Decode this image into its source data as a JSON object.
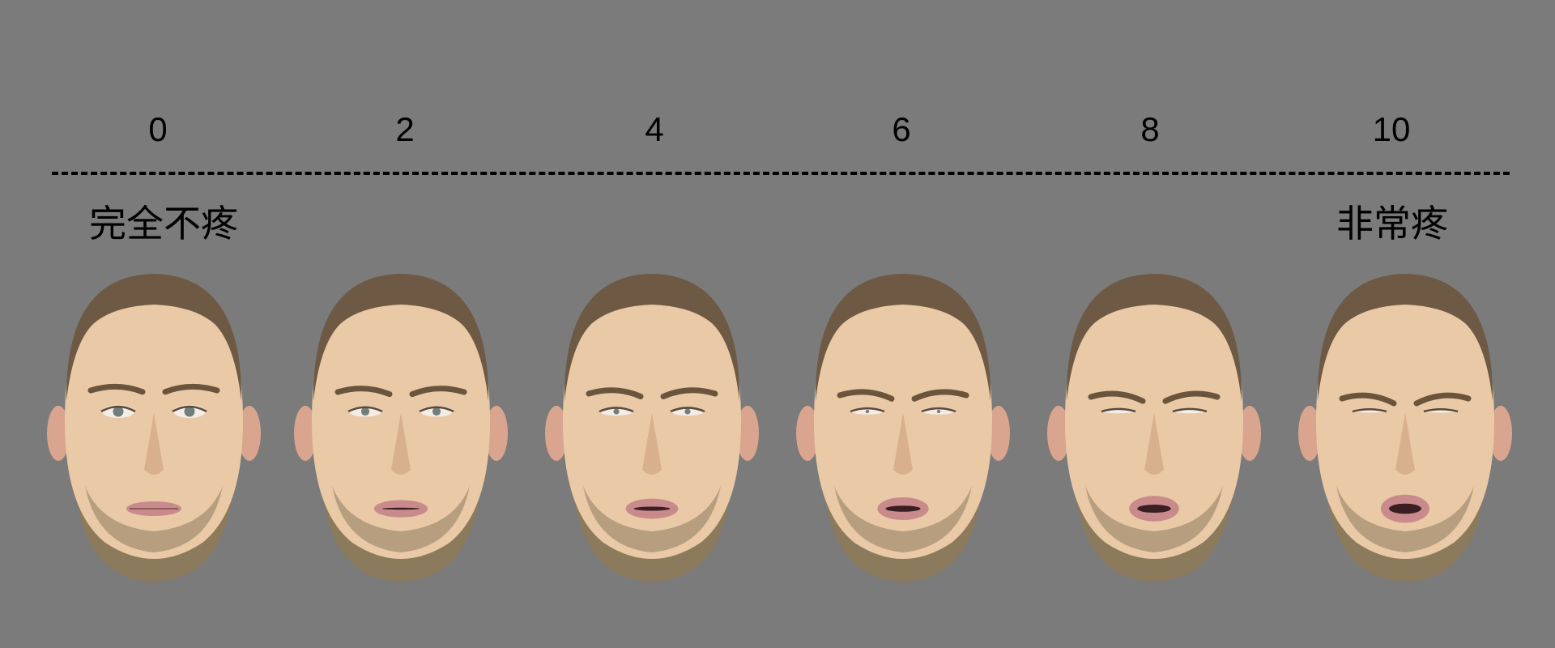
{
  "scale": {
    "ticks": [
      "0",
      "2",
      "4",
      "6",
      "8",
      "10"
    ],
    "left_anchor": "完全不疼",
    "right_anchor": "非常疼"
  },
  "faces": [
    {
      "pain": 0
    },
    {
      "pain": 2
    },
    {
      "pain": 4
    },
    {
      "pain": 6
    },
    {
      "pain": 8
    },
    {
      "pain": 10
    }
  ],
  "colors": {
    "background": "#7b7b7b",
    "text": "#000000",
    "skin": "#e9c9a6",
    "hair": "#6e5a44",
    "beard": "#8c7a5c",
    "lips": "#c98a8c"
  }
}
